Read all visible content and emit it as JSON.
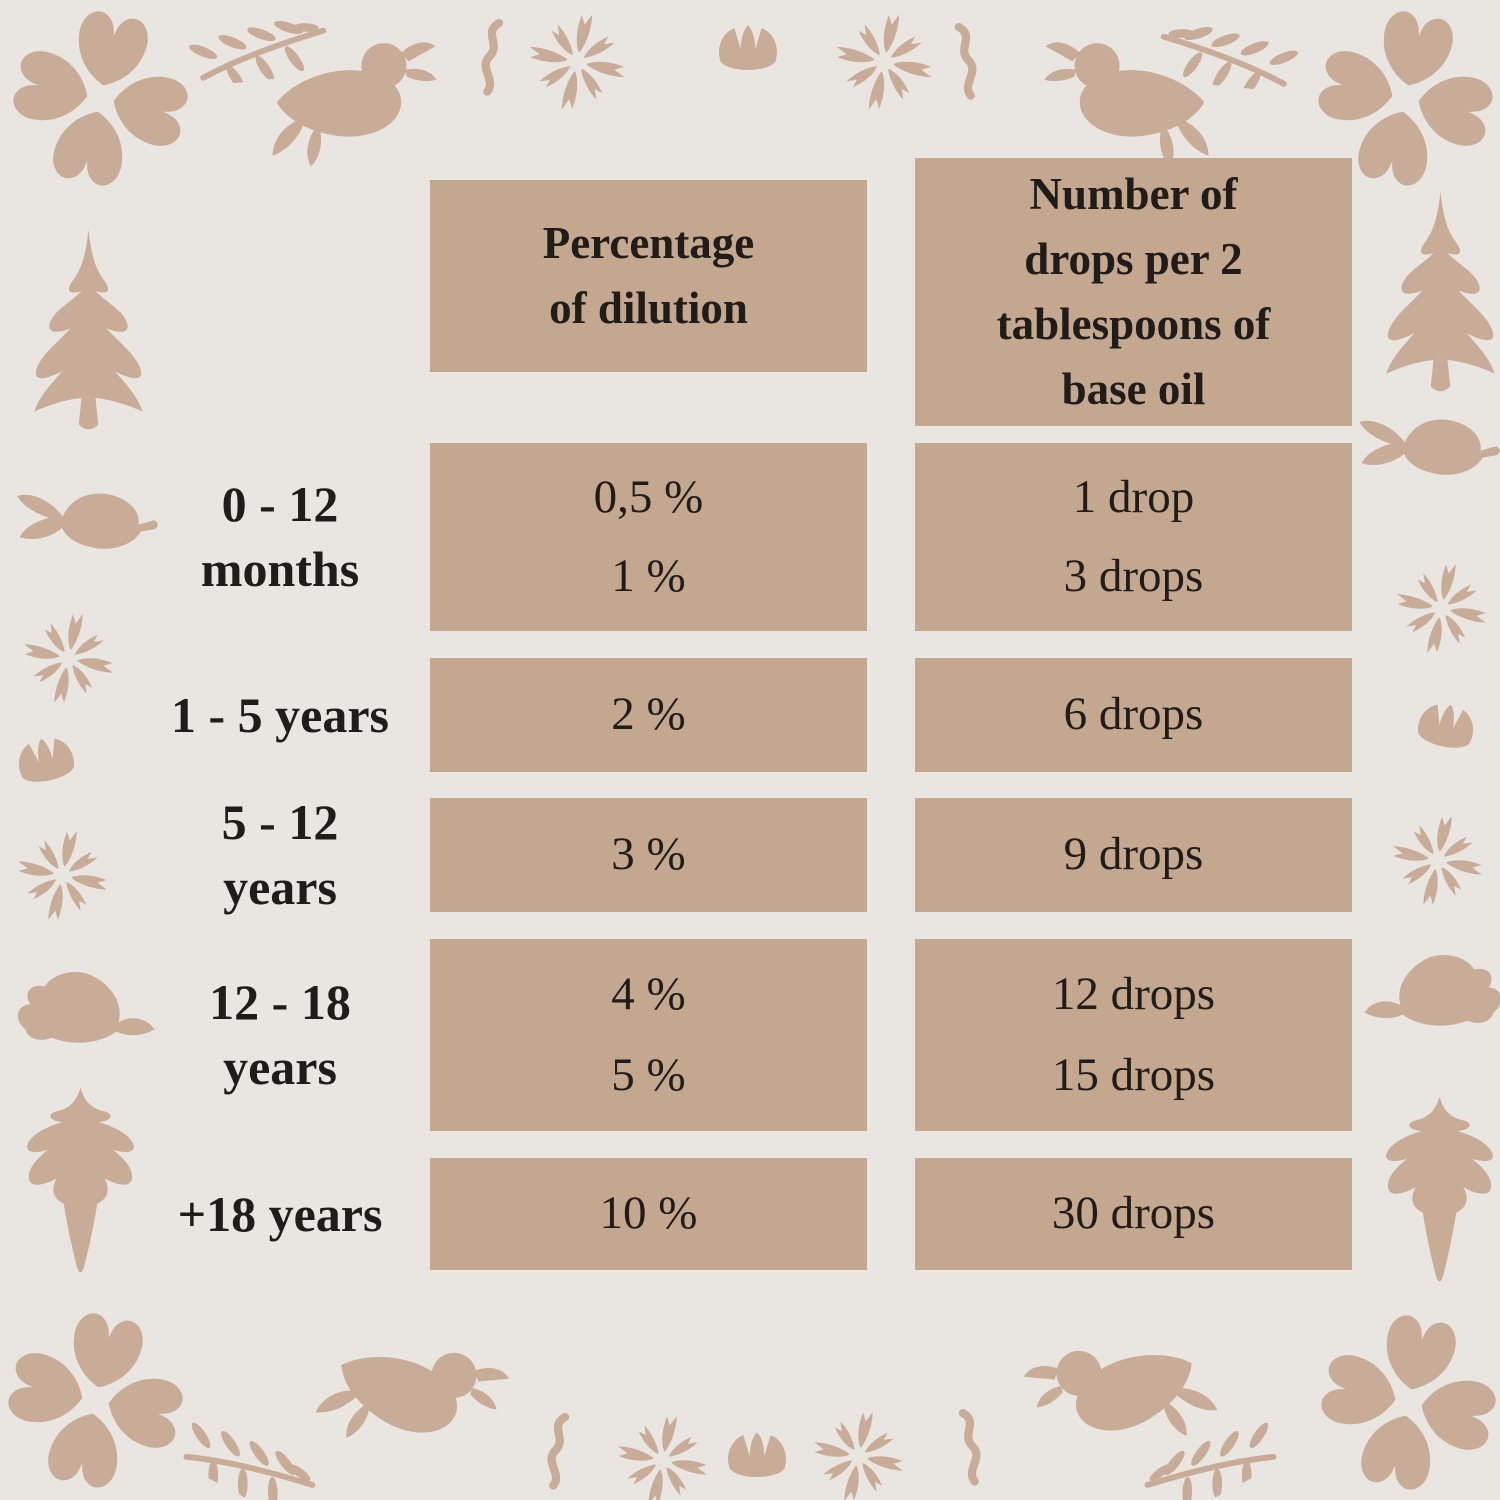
{
  "colors": {
    "background": "#E9E5E1",
    "cell_fill": "#C4A78F",
    "motif": "#C9AC97",
    "text": "#201C19"
  },
  "chart_data": {
    "type": "table",
    "title": "",
    "column_headers": [
      {
        "text": "Percentage of dilution",
        "lines": [
          "Percentage",
          "of dilution"
        ]
      },
      {
        "text": "Number of drops per 2 tablespoons of base oil",
        "lines": [
          "Number of",
          "drops per 2",
          "tablespoons of",
          "base oil"
        ]
      }
    ],
    "rows": [
      {
        "age_lines": [
          "0 - 12",
          "months"
        ],
        "dilution": [
          "0,5 %",
          "1 %"
        ],
        "drops": [
          "1 drop",
          "3 drops"
        ]
      },
      {
        "age_lines": [
          "1 - 5 years"
        ],
        "dilution": [
          "2 %"
        ],
        "drops": [
          "6 drops"
        ]
      },
      {
        "age_lines": [
          "5 - 12",
          "years"
        ],
        "dilution": [
          "3 %"
        ],
        "drops": [
          "9 drops"
        ]
      },
      {
        "age_lines": [
          "12 - 18",
          "years"
        ],
        "dilution": [
          "4 %",
          "5 %"
        ],
        "drops": [
          "12 drops",
          "15 drops"
        ]
      },
      {
        "age_lines": [
          "+18 years"
        ],
        "dilution": [
          "10 %"
        ],
        "drops": [
          "30 drops"
        ]
      }
    ]
  },
  "decorations": {
    "motif_names": [
      "snowflake-flower-icon",
      "bird-with-worm-icon",
      "leaf-sprig-icon",
      "worm-squiggle-icon",
      "flower-burst-icon",
      "tulip-icon",
      "fir-tree-icon",
      "side-bird-icon",
      "sitting-bird-icon",
      "root-ornament-icon"
    ]
  }
}
